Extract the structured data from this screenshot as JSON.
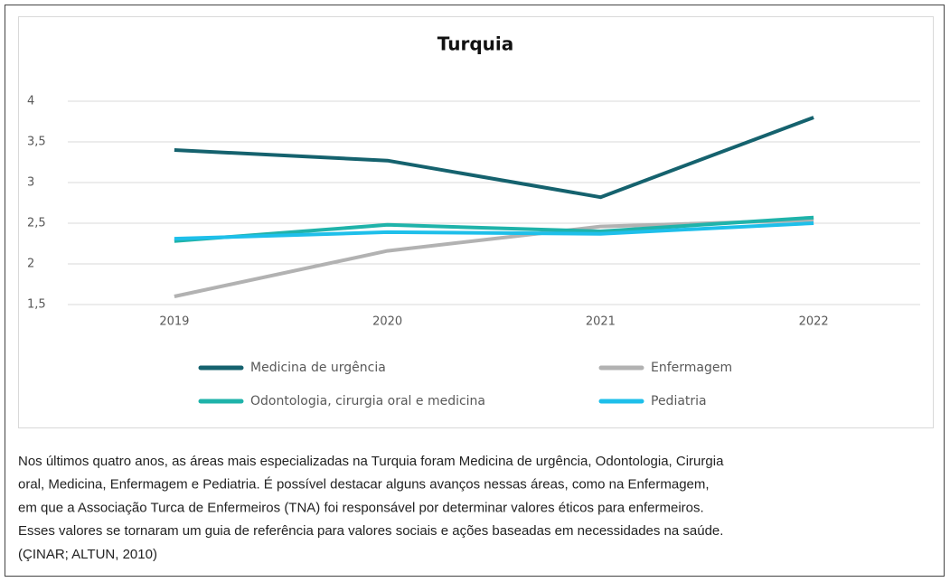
{
  "chart_data": {
    "type": "line",
    "title": "Turquia",
    "categories": [
      "2019",
      "2020",
      "2021",
      "2022"
    ],
    "series": [
      {
        "name": "Medicina de urgência",
        "color": "#15626e",
        "values": [
          3.4,
          3.27,
          2.82,
          3.8
        ]
      },
      {
        "name": "Enfermagem",
        "color": "#b2b2b2",
        "values": [
          1.6,
          2.16,
          2.46,
          2.54
        ]
      },
      {
        "name": "Odontologia, cirurgia oral e medicina",
        "color": "#1fb3aa",
        "values": [
          2.28,
          2.48,
          2.4,
          2.57
        ]
      },
      {
        "name": "Pediatria",
        "color": "#1ebfea",
        "values": [
          2.31,
          2.39,
          2.37,
          2.5
        ]
      }
    ],
    "ylim": [
      1.5,
      4
    ],
    "yticks": [
      {
        "value": 1.5,
        "label": "1,5"
      },
      2,
      {
        "value": 2.5,
        "label": "2,5"
      },
      3,
      {
        "value": 3.5,
        "label": "3,5"
      },
      4
    ],
    "grid": true,
    "legend": "bottom"
  },
  "caption_lines": [
    "Nos últimos quatro anos, as áreas mais especializadas na Turquia foram Medicina de urgência, Odontologia, Cirurgia",
    "oral, Medicina, Enfermagem e Pediatria. É possível destacar alguns avanços nessas áreas, como na Enfermagem,",
    "em que a Associação Turca de Enfermeiros (TNA) foi responsável por determinar valores éticos para enfermeiros.",
    "Esses valores se tornaram um guia de referência para valores sociais e ações baseadas em necessidades na saúde.",
    "(ÇINAR; ALTUN, 2010)"
  ]
}
